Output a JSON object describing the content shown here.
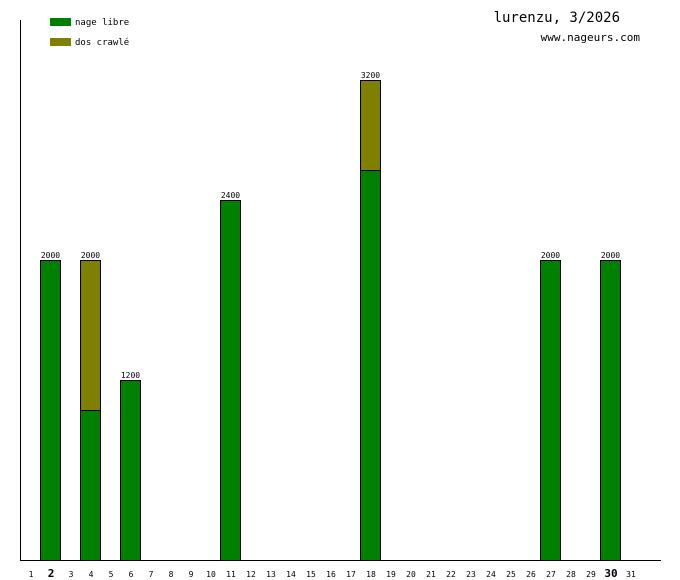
{
  "chart_data": {
    "type": "bar",
    "stacked": true,
    "title": "lurenzu, 3/2026",
    "site": "www.nageurs.com",
    "legend_position": "top-left",
    "x": [
      1,
      2,
      3,
      4,
      5,
      6,
      7,
      8,
      9,
      10,
      11,
      12,
      13,
      14,
      15,
      16,
      17,
      18,
      19,
      20,
      21,
      22,
      23,
      24,
      25,
      26,
      27,
      28,
      29,
      30,
      31
    ],
    "bold_ticks": [
      2,
      30
    ],
    "ylim": [
      0,
      3200
    ],
    "series": [
      {
        "name": "nage libre",
        "color": "#008000",
        "values": [
          0,
          2000,
          0,
          1000,
          0,
          1200,
          0,
          0,
          0,
          0,
          2400,
          0,
          0,
          0,
          0,
          0,
          0,
          2600,
          0,
          0,
          0,
          0,
          0,
          0,
          0,
          0,
          2000,
          0,
          0,
          2000,
          0
        ]
      },
      {
        "name": "dos crawlé",
        "color": "#808000",
        "values": [
          0,
          0,
          0,
          1000,
          0,
          0,
          0,
          0,
          0,
          0,
          0,
          0,
          0,
          0,
          0,
          0,
          0,
          600,
          0,
          0,
          0,
          0,
          0,
          0,
          0,
          0,
          0,
          0,
          0,
          0,
          0
        ]
      }
    ],
    "totals": [
      0,
      2000,
      0,
      2000,
      0,
      1200,
      0,
      0,
      0,
      0,
      2400,
      0,
      0,
      0,
      0,
      0,
      0,
      3200,
      0,
      0,
      0,
      0,
      0,
      0,
      0,
      0,
      2000,
      0,
      0,
      2000,
      0
    ]
  }
}
